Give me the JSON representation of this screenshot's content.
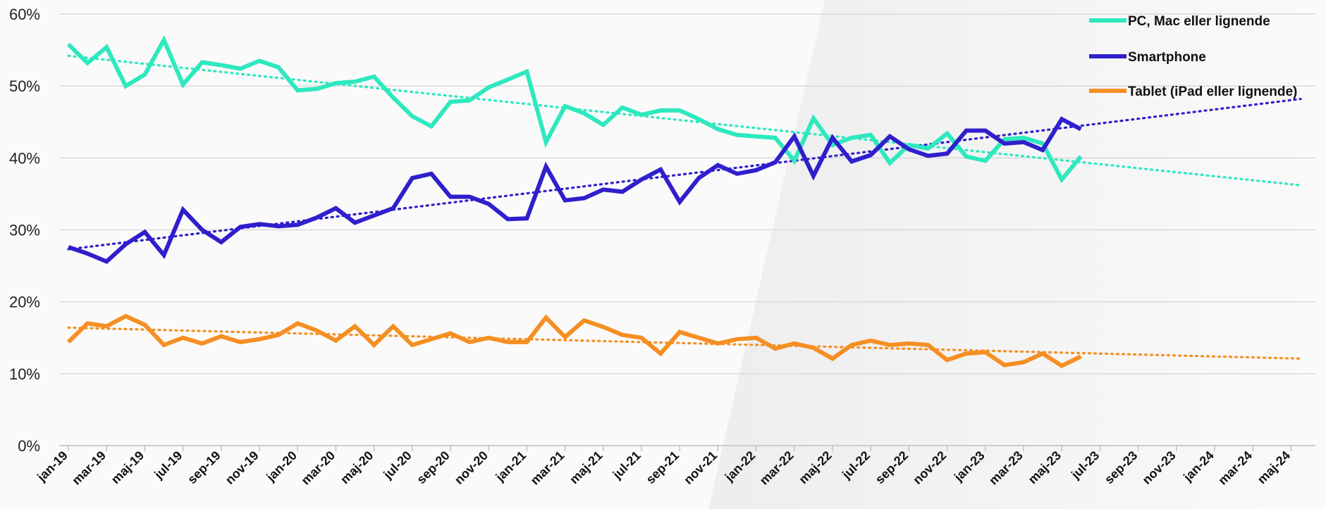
{
  "chart_data": {
    "type": "line",
    "title": "",
    "xlabel": "",
    "ylabel": "",
    "ylim": [
      0,
      60
    ],
    "y_ticks": [
      "0%",
      "10%",
      "20%",
      "30%",
      "40%",
      "50%",
      "60%"
    ],
    "x_tick_labels": [
      "jan-19",
      "mar-19",
      "maj-19",
      "jul-19",
      "sep-19",
      "nov-19",
      "jan-20",
      "mar-20",
      "maj-20",
      "jul-20",
      "sep-20",
      "nov-20",
      "jan-21",
      "mar-21",
      "maj-21",
      "jul-21",
      "sep-21",
      "nov-21",
      "jan-22",
      "mar-22",
      "maj-22",
      "jul-22",
      "sep-22",
      "nov-22",
      "jan-23",
      "mar-23",
      "maj-23",
      "jul-23",
      "sep-23",
      "nov-23",
      "jan-24",
      "mar-24",
      "maj-24"
    ],
    "grid": true,
    "legend_position": "top-right",
    "series": [
      {
        "name": "PC, Mac eller lignende",
        "color": "#2ee8be",
        "values": [
          55.8,
          53.2,
          55.4,
          50,
          51.6,
          56.4,
          50.2,
          53.3,
          52.9,
          52.4,
          53.5,
          52.6,
          49.4,
          49.6,
          50.4,
          50.6,
          51.3,
          48.4,
          45.8,
          44.4,
          47.8,
          48,
          49.8,
          50.9,
          52,
          42.2,
          47.2,
          46.2,
          44.6,
          47,
          46,
          46.6,
          46.6,
          45.4,
          44,
          43.2,
          43,
          42.8,
          39.6,
          45.5,
          41.8,
          42.8,
          43.2,
          39.3,
          41.8,
          41.3,
          43.4,
          40.2,
          39.6,
          42.6,
          42.8,
          42,
          37,
          40.2
        ],
        "trend": [
          54.2,
          36.2
        ]
      },
      {
        "name": "Smartphone",
        "color": "#2f1fcc",
        "values": [
          27.6,
          26.7,
          25.6,
          28,
          29.7,
          26.5,
          32.8,
          30,
          28.3,
          30.4,
          30.8,
          30.5,
          30.7,
          31.7,
          33,
          31,
          32,
          33,
          37.2,
          37.8,
          34.6,
          34.6,
          33.6,
          31.5,
          31.6,
          38.8,
          34.1,
          34.4,
          35.6,
          35.3,
          37,
          38.4,
          33.9,
          37.2,
          39,
          37.8,
          38.3,
          39.4,
          43,
          37.5,
          42.8,
          39.5,
          40.4,
          43,
          41.2,
          40.3,
          40.6,
          43.8,
          43.8,
          42,
          42.2,
          41.1,
          45.4,
          44
        ],
        "trend": [
          27.3,
          48.2
        ]
      },
      {
        "name": "Tablet (iPad eller lignende)",
        "color": "#f58f23",
        "values": [
          14.4,
          17,
          16.6,
          18,
          16.8,
          14,
          15,
          14.2,
          15.2,
          14.4,
          14.8,
          15.4,
          17,
          16,
          14.6,
          16.6,
          14,
          16.6,
          14,
          14.8,
          15.6,
          14.4,
          15,
          14.4,
          14.4,
          17.8,
          15.1,
          17.4,
          16.5,
          15.4,
          15,
          12.8,
          15.8,
          15,
          14.2,
          14.8,
          15,
          13.5,
          14.2,
          13.6,
          12.1,
          14,
          14.6,
          14,
          14.2,
          14,
          11.9,
          12.8,
          13,
          11.2,
          11.6,
          12.8,
          11.1,
          12.4
        ],
        "trend": [
          16.4,
          12.1
        ]
      }
    ]
  }
}
